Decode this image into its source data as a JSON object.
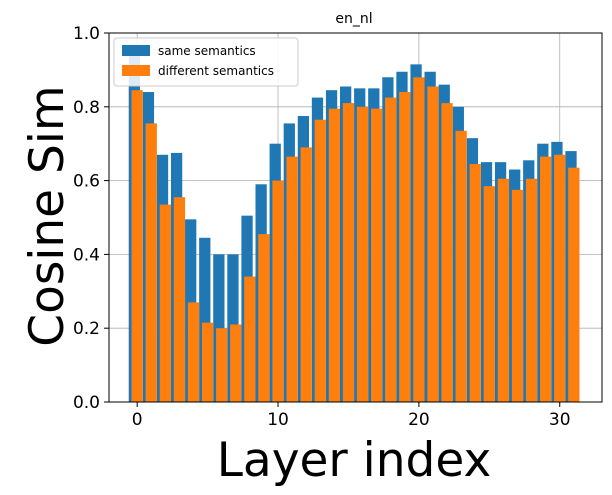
{
  "chart_data": {
    "type": "bar",
    "title": "en_nl",
    "xlabel": "Layer index",
    "ylabel": "Cosine Sim",
    "x": [
      0,
      1,
      2,
      3,
      4,
      5,
      6,
      7,
      8,
      9,
      10,
      11,
      12,
      13,
      14,
      15,
      16,
      17,
      18,
      19,
      20,
      21,
      22,
      23,
      24,
      25,
      26,
      27,
      28,
      29,
      30,
      31
    ],
    "series": [
      {
        "name": "same semantics",
        "color": "#1f77b4",
        "offset": -0.2,
        "values": [
          0.95,
          0.84,
          0.67,
          0.675,
          0.495,
          0.445,
          0.4,
          0.4,
          0.505,
          0.59,
          0.7,
          0.755,
          0.775,
          0.825,
          0.845,
          0.855,
          0.85,
          0.85,
          0.88,
          0.895,
          0.915,
          0.895,
          0.86,
          0.8,
          0.715,
          0.65,
          0.65,
          0.63,
          0.655,
          0.7,
          0.705,
          0.68
        ]
      },
      {
        "name": "different semantics",
        "color": "#ff7f0e",
        "offset": 0.0,
        "values": [
          0.845,
          0.755,
          0.535,
          0.555,
          0.27,
          0.215,
          0.2,
          0.21,
          0.34,
          0.455,
          0.6,
          0.665,
          0.69,
          0.765,
          0.795,
          0.81,
          0.8,
          0.795,
          0.825,
          0.84,
          0.88,
          0.855,
          0.81,
          0.735,
          0.645,
          0.585,
          0.605,
          0.575,
          0.605,
          0.665,
          0.67,
          0.635
        ]
      }
    ],
    "xlim": [
      -2.0,
      33.0
    ],
    "ylim": [
      0.0,
      1.0
    ],
    "xticks": [
      0,
      10,
      20,
      30
    ],
    "yticks": [
      0.0,
      0.2,
      0.4,
      0.6,
      0.8,
      1.0
    ],
    "ytick_labels": [
      "0.0",
      "0.2",
      "0.4",
      "0.6",
      "0.8",
      "1.0"
    ],
    "grid": true,
    "legend_position": "top-left"
  }
}
